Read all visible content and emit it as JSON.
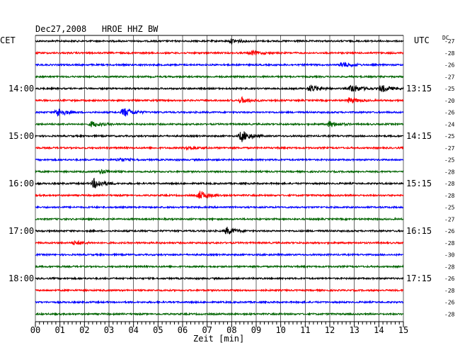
{
  "chart_data": {
    "type": "line",
    "title": "Dec27,2008   HROE HHZ BW",
    "left_axis_label": "CET",
    "right_axis_label": "UTC",
    "dc_label": "DC",
    "xlabel": "Zeit [min]",
    "x_ticks": [
      "00",
      "01",
      "02",
      "03",
      "04",
      "05",
      "06",
      "07",
      "08",
      "09",
      "10",
      "11",
      "12",
      "13",
      "14",
      "15"
    ],
    "xlim": [
      0,
      15
    ],
    "trace_colors": [
      "#000000",
      "#ff0000",
      "#0000ff",
      "#006400"
    ],
    "left_time_labels": [
      {
        "trace": 4,
        "label": "14:00"
      },
      {
        "trace": 8,
        "label": "15:00"
      },
      {
        "trace": 12,
        "label": "16:00"
      },
      {
        "trace": 16,
        "label": "17:00"
      },
      {
        "trace": 20,
        "label": "18:00"
      }
    ],
    "right_time_labels": [
      {
        "trace": 4,
        "label": "13:15"
      },
      {
        "trace": 8,
        "label": "14:15"
      },
      {
        "trace": 12,
        "label": "15:15"
      },
      {
        "trace": 16,
        "label": "16:15"
      },
      {
        "trace": 20,
        "label": "17:15"
      }
    ],
    "dc_offsets": [
      "-27",
      "-28",
      "-26",
      "-27",
      "-25",
      "-20",
      "-26",
      "-24",
      "-25",
      "-27",
      "-25",
      "-28",
      "-28",
      "-28",
      "-25",
      "-27",
      "-26",
      "-28",
      "-30",
      "-28",
      "-26",
      "-28",
      "-26",
      "-28"
    ],
    "bursts": [
      {
        "trace": 0,
        "min": 8.0,
        "amp": 0.6
      },
      {
        "trace": 1,
        "min": 8.8,
        "amp": 0.6
      },
      {
        "trace": 2,
        "min": 12.5,
        "amp": 0.8
      },
      {
        "trace": 4,
        "min": 11.2,
        "amp": 1.0
      },
      {
        "trace": 4,
        "min": 12.9,
        "amp": 1.2
      },
      {
        "trace": 4,
        "min": 14.1,
        "amp": 1.0
      },
      {
        "trace": 5,
        "min": 8.4,
        "amp": 0.8
      },
      {
        "trace": 5,
        "min": 12.8,
        "amp": 0.8
      },
      {
        "trace": 6,
        "min": 0.9,
        "amp": 1.2
      },
      {
        "trace": 6,
        "min": 3.6,
        "amp": 1.3
      },
      {
        "trace": 7,
        "min": 2.3,
        "amp": 0.8
      },
      {
        "trace": 7,
        "min": 12.0,
        "amp": 0.8
      },
      {
        "trace": 8,
        "min": 8.4,
        "amp": 1.6
      },
      {
        "trace": 9,
        "min": 6.2,
        "amp": 0.6
      },
      {
        "trace": 10,
        "min": 3.4,
        "amp": 0.5
      },
      {
        "trace": 11,
        "min": 2.7,
        "amp": 0.5
      },
      {
        "trace": 12,
        "min": 2.4,
        "amp": 1.4
      },
      {
        "trace": 13,
        "min": 6.7,
        "amp": 1.2
      },
      {
        "trace": 16,
        "min": 7.8,
        "amp": 1.0
      },
      {
        "trace": 17,
        "min": 1.6,
        "amp": 0.5
      }
    ]
  }
}
